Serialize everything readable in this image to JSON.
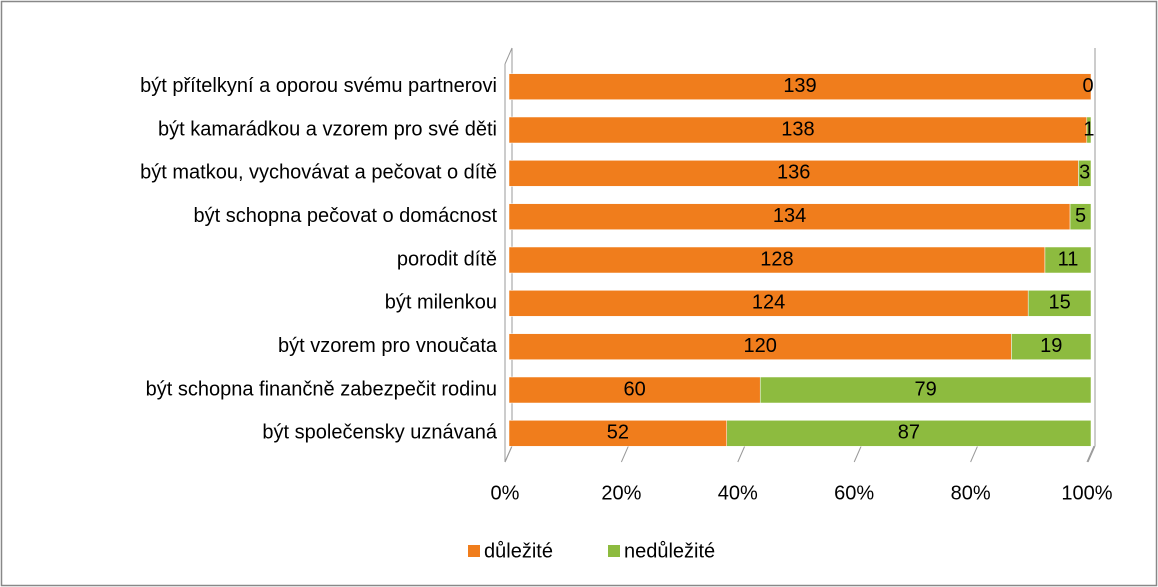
{
  "chart_data": {
    "type": "bar",
    "orientation": "horizontal",
    "stacking": "percent",
    "categories": [
      "být přítelkyní a oporou svému partnerovi",
      "být kamarádkou a vzorem pro své děti",
      "být matkou, vychovávat a pečovat o dítě",
      "být schopna pečovat o domácnost",
      "porodit dítě",
      "být milenkou",
      "být vzorem pro vnoučata",
      "být schopna finančně zabezpečit rodinu",
      "být společensky uznávaná"
    ],
    "series": [
      {
        "name": "důležité",
        "color": "#f07d1c",
        "values": [
          139,
          138,
          136,
          134,
          128,
          124,
          120,
          60,
          52
        ]
      },
      {
        "name": "nedůležité",
        "color": "#8dbb3f",
        "values": [
          0,
          1,
          3,
          5,
          11,
          15,
          19,
          79,
          87
        ]
      }
    ],
    "xlim": [
      0,
      100
    ],
    "xticks": [
      {
        "value": 0,
        "label": "0%"
      },
      {
        "value": 20,
        "label": "20%"
      },
      {
        "value": 40,
        "label": "40%"
      },
      {
        "value": 60,
        "label": "60%"
      },
      {
        "value": 80,
        "label": "80%"
      },
      {
        "value": 100,
        "label": "100%"
      }
    ],
    "legend": "bottom"
  }
}
